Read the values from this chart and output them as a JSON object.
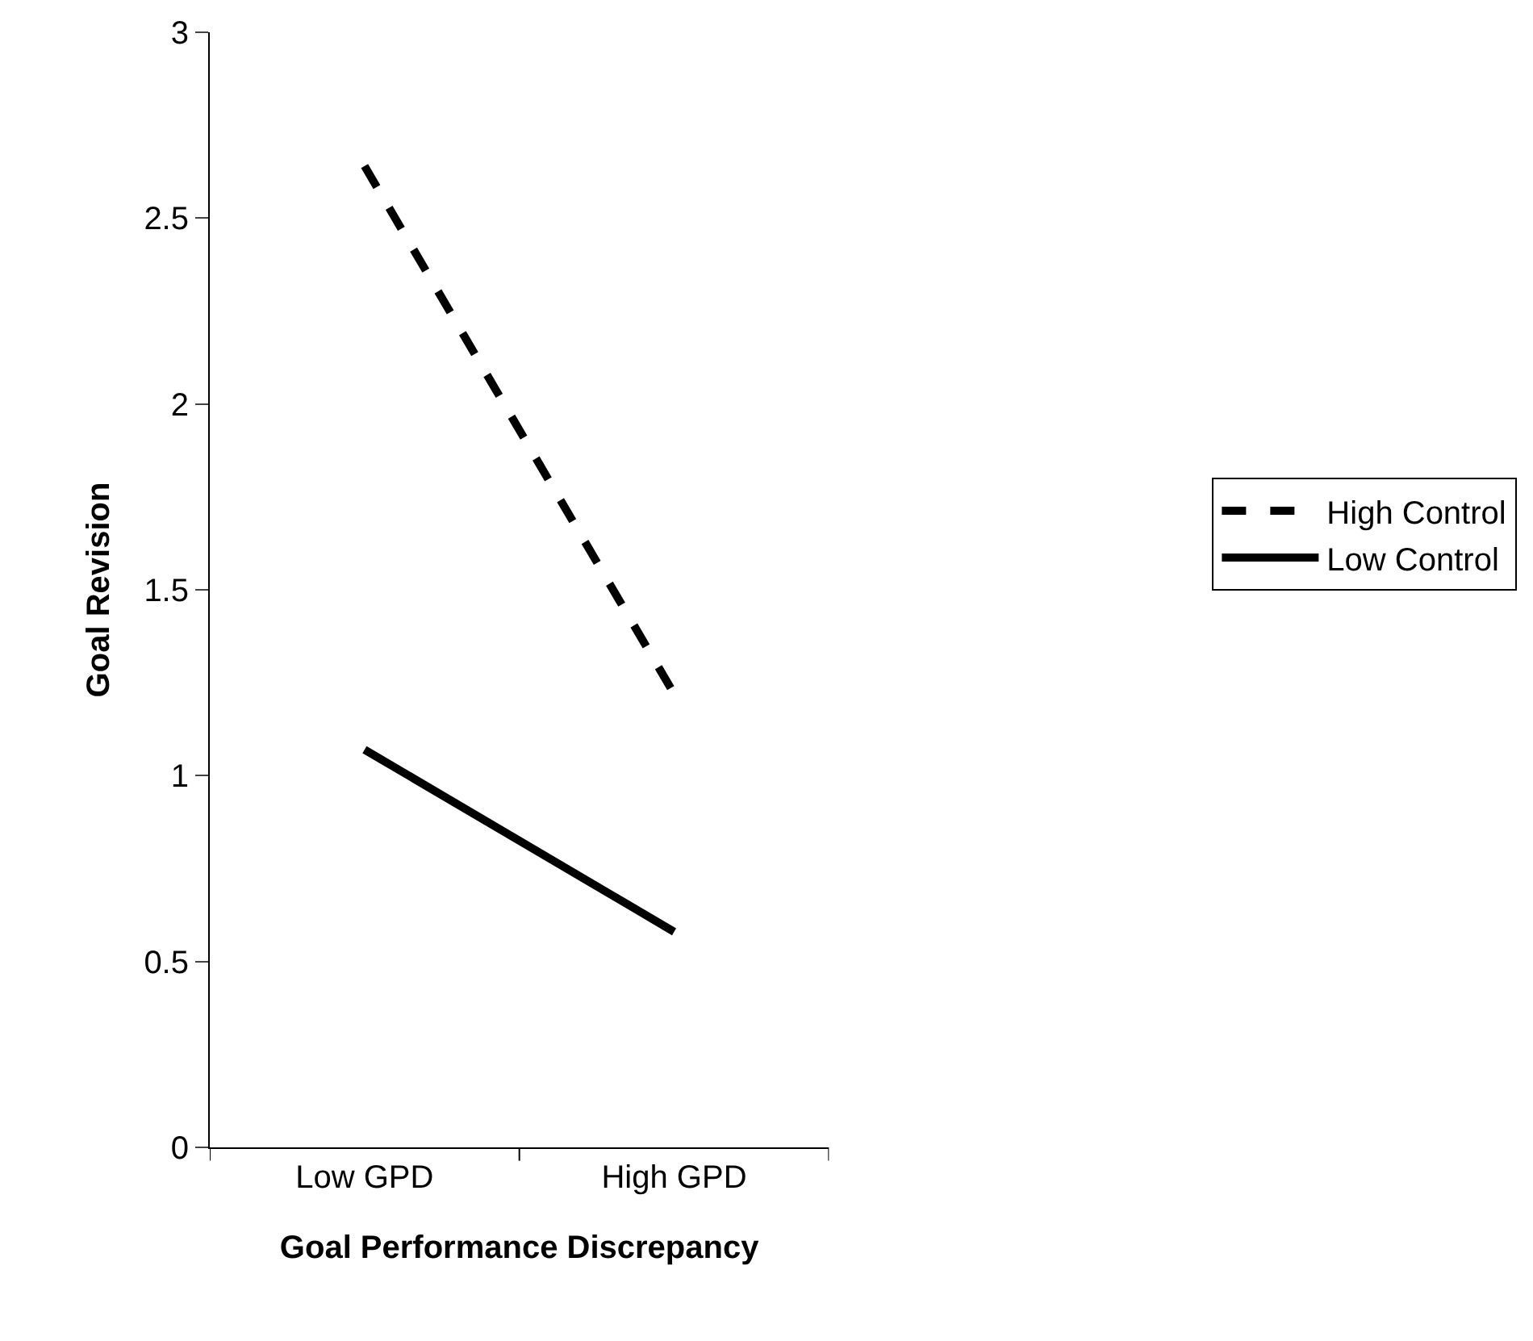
{
  "chart_data": {
    "type": "line",
    "xlabel": "Goal Performance Discrepancy",
    "ylabel": "Goal Revision",
    "categories": [
      "Low GPD",
      "High GPD"
    ],
    "series": [
      {
        "name": "High Control",
        "color": "#000000",
        "values": [
          2.64,
          1.22
        ],
        "line_style": "dashed"
      },
      {
        "name": "Low Control",
        "color": "#000000",
        "values": [
          1.07,
          0.58
        ],
        "line_style": "solid"
      }
    ],
    "ylim": [
      0,
      3
    ],
    "yticks": [
      0,
      0.5,
      1,
      1.5,
      2,
      2.5,
      3
    ],
    "legend": "right",
    "marker": "none"
  }
}
